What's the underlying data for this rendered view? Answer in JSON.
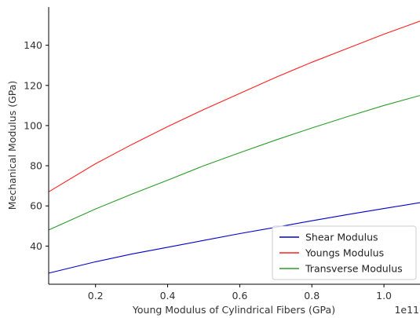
{
  "chart_data": {
    "type": "line",
    "title": "",
    "xlabel": "Young Modulus of Cylindrical Fibers (GPa)",
    "ylabel": "Mechanical Modulus (GPa)",
    "x_offset_text": "1e11",
    "xlim": [
      0.07,
      1.1
    ],
    "ylim": [
      21,
      159
    ],
    "x_ticks": [
      0.2,
      0.4,
      0.6,
      0.8,
      1.0
    ],
    "x_tick_labels": [
      "0.2",
      "0.4",
      "0.6",
      "0.8",
      "1.0"
    ],
    "y_ticks": [
      40,
      60,
      80,
      100,
      120,
      140
    ],
    "y_tick_labels": [
      "40",
      "60",
      "80",
      "100",
      "120",
      "140"
    ],
    "grid": false,
    "legend_position": "lower-right",
    "series": [
      {
        "name": "Shear Modulus",
        "color": "#0000cc",
        "x": [
          0.07,
          0.2,
          0.3,
          0.4,
          0.5,
          0.6,
          0.7,
          0.8,
          0.9,
          1.0,
          1.1
        ],
        "y": [
          26.5,
          32.2,
          36.0,
          39.4,
          42.8,
          46.2,
          49.4,
          52.6,
          55.7,
          58.7,
          61.6
        ]
      },
      {
        "name": "Youngs Modulus",
        "color": "#ff2020",
        "x": [
          0.07,
          0.2,
          0.3,
          0.4,
          0.5,
          0.6,
          0.7,
          0.8,
          0.9,
          1.0,
          1.1
        ],
        "y": [
          67.0,
          81.0,
          90.5,
          99.5,
          108.0,
          116.0,
          124.0,
          131.5,
          138.5,
          145.5,
          152.0
        ]
      },
      {
        "name": "Transverse Modulus",
        "color": "#2a9d2a",
        "x": [
          0.07,
          0.2,
          0.3,
          0.4,
          0.5,
          0.6,
          0.7,
          0.8,
          0.9,
          1.0,
          1.1
        ],
        "y": [
          48.0,
          58.5,
          65.8,
          72.8,
          80.0,
          86.5,
          92.8,
          98.8,
          104.5,
          110.0,
          115.0
        ]
      }
    ]
  }
}
